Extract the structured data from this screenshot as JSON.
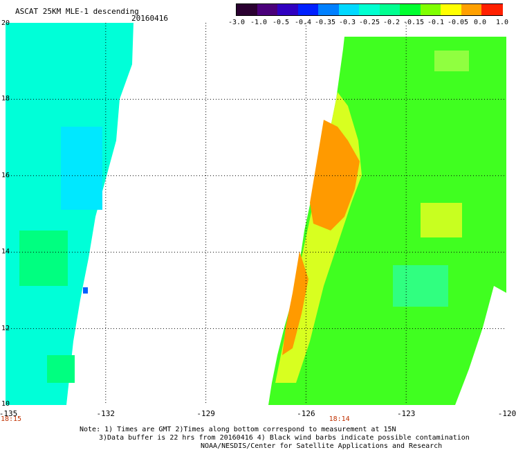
{
  "header": {
    "title": "ASCAT 25KM MLE-1 descending",
    "date": "20160416"
  },
  "colorbar": {
    "labels": [
      "-3.0",
      "-1.0",
      "-0.5",
      "-0.4",
      "-0.35",
      "-0.3",
      "-0.25",
      "-0.2",
      "-0.15",
      "-0.1",
      "-0.05",
      "0.0",
      "1.0"
    ],
    "colors": [
      "#2a0030",
      "#4a007a",
      "#3000c0",
      "#0020ff",
      "#0080ff",
      "#00d8ff",
      "#00ffd0",
      "#00ff90",
      "#00ff30",
      "#80ff00",
      "#ffff00",
      "#ffa000",
      "#ff2000"
    ]
  },
  "map": {
    "y_axis": {
      "min": 10,
      "max": 20,
      "ticks": [
        "20",
        "18",
        "16",
        "14",
        "12",
        "10"
      ]
    },
    "x_axis": {
      "min": -135,
      "max": -120,
      "ticks": [
        "-135",
        "-132",
        "-129",
        "-126",
        "-123",
        "-120"
      ]
    },
    "time_labels": [
      {
        "text": "18:15",
        "lon": -135
      },
      {
        "text": "18:14",
        "lon": -125
      }
    ],
    "swaths": [
      {
        "name": "west",
        "region_color": "#00ffd8"
      },
      {
        "name": "east",
        "region_color": "#40ff20"
      }
    ]
  },
  "notes": {
    "line1": "Note: 1) Times are GMT 2)Times along bottom correspond to measurement at 15N",
    "line2": "3)Data buffer is 22 hrs from 20160416 4) Black wind barbs indicate possible contamination",
    "line3": "NOAA/NESDIS/Center for Satellite Applications and Research"
  }
}
